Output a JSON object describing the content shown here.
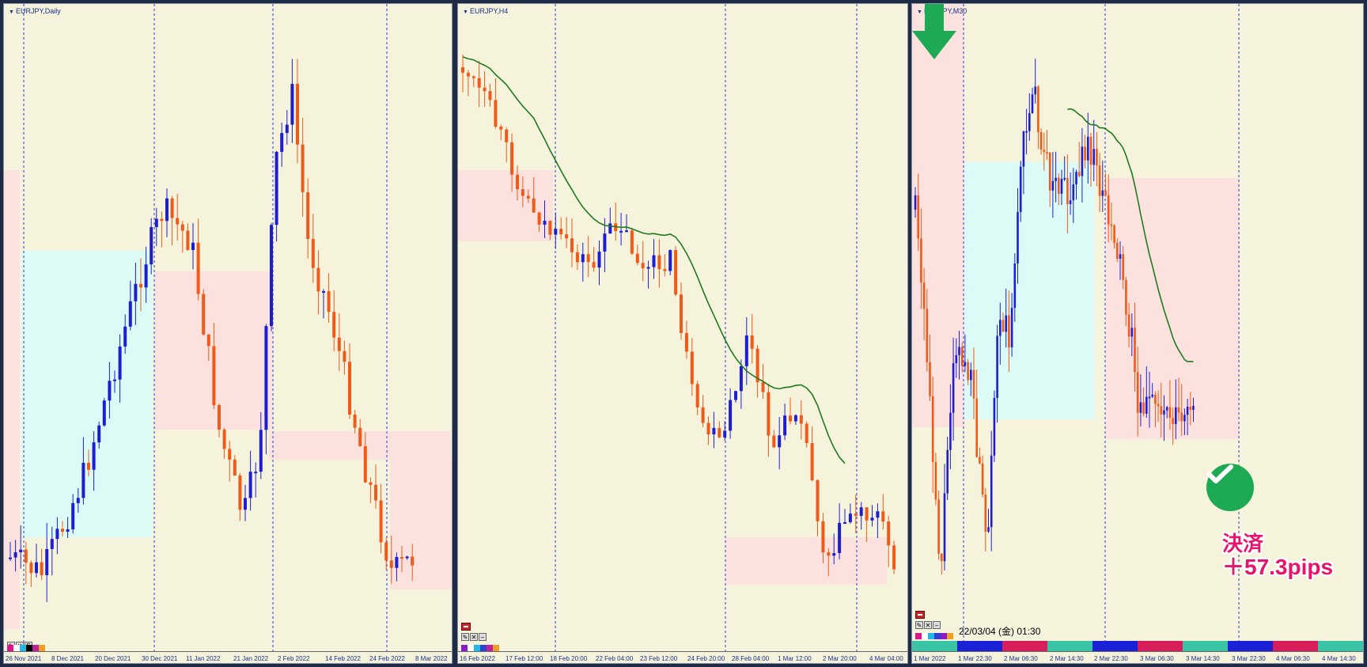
{
  "colors": {
    "background": "#f5f3dc",
    "bull": "#1d1ed2",
    "bear": "#ef5a1a",
    "ma": "#1f7a1f",
    "zone_blue": "#dcfbf7",
    "zone_pink": "#fce2df",
    "check_green": "#1ea954",
    "result_pink": "#e8136b",
    "arrow_green": "#1ea954"
  },
  "panels": [
    {
      "id": "daily",
      "title": "EURJPY,Daily",
      "x_ticks": [
        "26 Nov 2021",
        "8 Dec 2021",
        "20 Dec 2021",
        "30 Dec 2021",
        "11 Jan 2022",
        "21 Jan 2022",
        "2 Feb 2022",
        "14 Feb 2022",
        "24 Feb 2022",
        "8 Mar 2022"
      ],
      "toolbar": {
        "buttons": [
          "✎",
          "✕",
          "F"
        ]
      }
    },
    {
      "id": "h4",
      "title": "EURJPY,H4",
      "x_ticks": [
        "16 Feb 2022",
        "17 Feb 12:00",
        "18 Feb 20:00",
        "22 Feb 04:00",
        "23 Feb 12:00",
        "24 Feb 20:00",
        "28 Feb 04:00",
        "1 Mar 12:00",
        "2 Mar 20:00",
        "4 Mar 04:00"
      ],
      "toolbar": {
        "buttons": [
          "✎",
          "✕",
          "–"
        ]
      }
    },
    {
      "id": "m30",
      "title": "EURJPY,M30",
      "x_ticks": [
        "1 Mar 2022",
        "1 Mar 22:30",
        "2 Mar 06:30",
        "2 Mar 14:30",
        "2 Mar 22:30",
        "3 Mar 06:30",
        "3 Mar 14:30",
        "3 Mar 22:30",
        "4 Mar 06:30",
        "4 Mar 14:30"
      ],
      "toolbar": {
        "buttons": [
          "✎",
          "✕",
          "–"
        ]
      },
      "datestamp": "22/03/04 (金) 01:30",
      "result": {
        "label": "決済",
        "pips": "＋57.3pips"
      }
    }
  ]
}
